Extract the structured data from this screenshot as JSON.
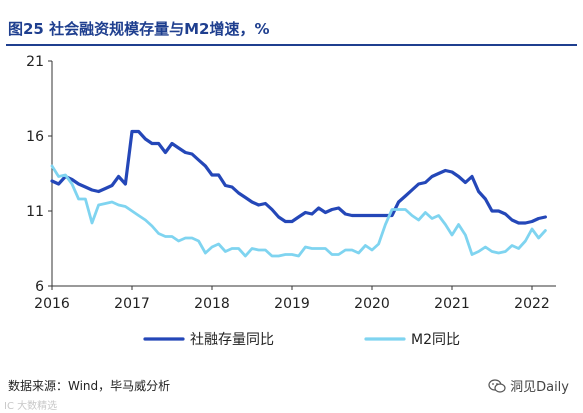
{
  "header": {
    "title": "图25 社会融资规模存量与M2增速，%"
  },
  "footer": {
    "source": "数据来源：Wind，毕马威分析"
  },
  "watermark": {
    "left": "IC 大数精选",
    "right": "洞见Daily",
    "icon": "wechat-icon"
  },
  "colors": {
    "title": "#1f3f8f",
    "tsf": "#2447b8",
    "m2": "#7fd4f0"
  },
  "chart_data": {
    "type": "line",
    "title": "图25 社会融资规模存量与M2增速，%",
    "xlabel": "",
    "ylabel": "",
    "ylim": [
      6,
      21
    ],
    "yticks": [
      6,
      11,
      16,
      21
    ],
    "xlim": [
      2016.0,
      2022.3
    ],
    "xticks": [
      2016,
      2017,
      2018,
      2019,
      2020,
      2021,
      2022
    ],
    "xtick_labels": [
      "2016",
      "2017",
      "2018",
      "2019",
      "2020",
      "2021",
      "2022"
    ],
    "ytick_labels": [
      "6",
      "11",
      "16",
      "21"
    ],
    "grid": false,
    "legend_position": "bottom",
    "series": [
      {
        "name": "社融存量同比",
        "x": [
          2016.0,
          2016.083,
          2016.167,
          2016.25,
          2016.333,
          2016.417,
          2016.5,
          2016.583,
          2016.667,
          2016.75,
          2016.833,
          2016.917,
          2017.0,
          2017.083,
          2017.167,
          2017.25,
          2017.333,
          2017.417,
          2017.5,
          2017.583,
          2017.667,
          2017.75,
          2017.833,
          2017.917,
          2018.0,
          2018.083,
          2018.167,
          2018.25,
          2018.333,
          2018.417,
          2018.5,
          2018.583,
          2018.667,
          2018.75,
          2018.833,
          2018.917,
          2019.0,
          2019.083,
          2019.167,
          2019.25,
          2019.333,
          2019.417,
          2019.5,
          2019.583,
          2019.667,
          2019.75,
          2019.833,
          2019.917,
          2020.0,
          2020.083,
          2020.167,
          2020.25,
          2020.333,
          2020.417,
          2020.5,
          2020.583,
          2020.667,
          2020.75,
          2020.833,
          2020.917,
          2021.0,
          2021.083,
          2021.167,
          2021.25,
          2021.333,
          2021.417,
          2021.5,
          2021.583,
          2021.667,
          2021.75,
          2021.833,
          2021.917,
          2022.0,
          2022.083,
          2022.167
        ],
        "values": [
          13.0,
          12.8,
          13.3,
          13.1,
          12.8,
          12.6,
          12.4,
          12.3,
          12.5,
          12.7,
          13.3,
          12.8,
          16.3,
          16.3,
          15.8,
          15.5,
          15.5,
          14.9,
          15.5,
          15.2,
          14.9,
          14.8,
          14.4,
          14.0,
          13.4,
          13.4,
          12.7,
          12.6,
          12.2,
          11.9,
          11.6,
          11.4,
          11.5,
          11.1,
          10.6,
          10.3,
          10.3,
          10.6,
          10.9,
          10.8,
          11.2,
          10.9,
          11.1,
          11.2,
          10.8,
          10.7,
          10.7,
          10.7,
          10.7,
          10.7,
          10.7,
          10.7,
          11.6,
          12.0,
          12.4,
          12.8,
          12.9,
          13.3,
          13.5,
          13.7,
          13.6,
          13.3,
          12.9,
          13.3,
          12.3,
          11.8,
          11.0,
          11.0,
          10.8,
          10.4,
          10.2,
          10.2,
          10.3,
          10.5,
          10.6
        ]
      },
      {
        "name": "M2同比",
        "x": [
          2016.0,
          2016.083,
          2016.167,
          2016.25,
          2016.333,
          2016.417,
          2016.5,
          2016.583,
          2016.667,
          2016.75,
          2016.833,
          2016.917,
          2017.0,
          2017.083,
          2017.167,
          2017.25,
          2017.333,
          2017.417,
          2017.5,
          2017.583,
          2017.667,
          2017.75,
          2017.833,
          2017.917,
          2018.0,
          2018.083,
          2018.167,
          2018.25,
          2018.333,
          2018.417,
          2018.5,
          2018.583,
          2018.667,
          2018.75,
          2018.833,
          2018.917,
          2019.0,
          2019.083,
          2019.167,
          2019.25,
          2019.333,
          2019.417,
          2019.5,
          2019.583,
          2019.667,
          2019.75,
          2019.833,
          2019.917,
          2020.0,
          2020.083,
          2020.167,
          2020.25,
          2020.333,
          2020.417,
          2020.5,
          2020.583,
          2020.667,
          2020.75,
          2020.833,
          2020.917,
          2021.0,
          2021.083,
          2021.167,
          2021.25,
          2021.333,
          2021.417,
          2021.5,
          2021.583,
          2021.667,
          2021.75,
          2021.833,
          2021.917,
          2022.0,
          2022.083,
          2022.167
        ],
        "values": [
          14.0,
          13.3,
          13.4,
          12.8,
          11.8,
          11.8,
          10.2,
          11.4,
          11.5,
          11.6,
          11.4,
          11.3,
          11.0,
          10.7,
          10.4,
          10.0,
          9.5,
          9.3,
          9.3,
          9.0,
          9.2,
          9.2,
          9.0,
          8.2,
          8.6,
          8.8,
          8.3,
          8.5,
          8.5,
          8.0,
          8.5,
          8.4,
          8.4,
          8.0,
          8.0,
          8.1,
          8.1,
          8.0,
          8.6,
          8.5,
          8.5,
          8.5,
          8.1,
          8.1,
          8.4,
          8.4,
          8.2,
          8.7,
          8.4,
          8.8,
          10.1,
          11.1,
          11.1,
          11.1,
          10.7,
          10.4,
          10.9,
          10.5,
          10.7,
          10.1,
          9.4,
          10.1,
          9.4,
          8.1,
          8.3,
          8.6,
          8.3,
          8.2,
          8.3,
          8.7,
          8.5,
          9.0,
          9.8,
          9.2,
          9.7
        ]
      }
    ]
  }
}
